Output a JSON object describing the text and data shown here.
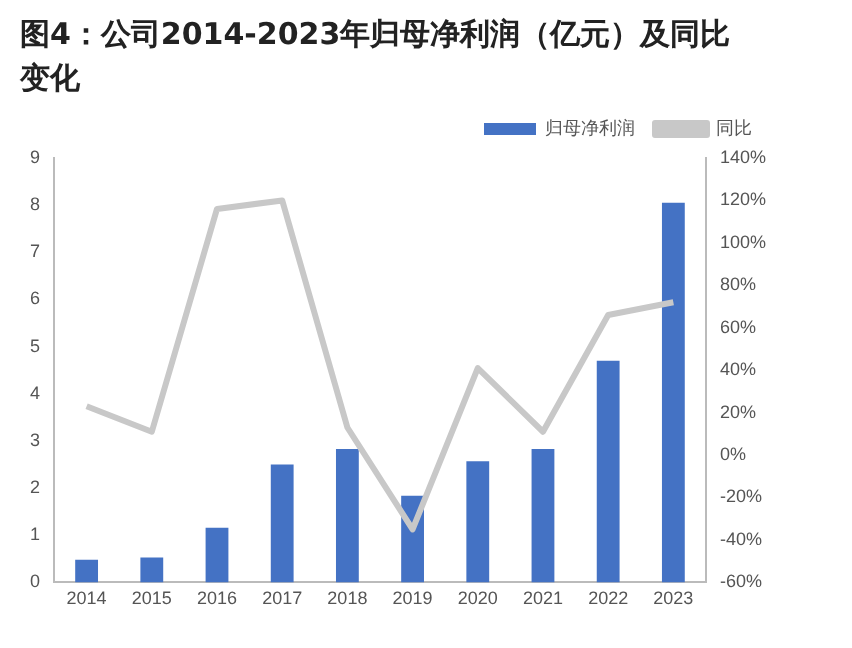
{
  "chart_data": {
    "type": "bar",
    "title": "图4：公司2014-2023年归母净利润（亿元）及同比变化",
    "categories": [
      "2014",
      "2015",
      "2016",
      "2017",
      "2018",
      "2019",
      "2020",
      "2021",
      "2022",
      "2023"
    ],
    "series": [
      {
        "name": "归母净利润",
        "color": "#4472c4",
        "values": [
          0.48,
          0.53,
          1.16,
          2.5,
          2.83,
          1.84,
          2.57,
          2.83,
          4.7,
          8.05
        ]
      },
      {
        "name": "同比",
        "type": "line",
        "axis": "y2",
        "color": "#c8c8c8",
        "values": [
          23,
          11,
          116,
          120,
          13,
          -35,
          41,
          11,
          66,
          72
        ]
      }
    ],
    "ylim": [
      0,
      9
    ],
    "yticks": [
      0,
      1,
      2,
      3,
      4,
      5,
      6,
      7,
      8,
      9
    ],
    "y2lim": [
      -60,
      140
    ],
    "y2ticks": [
      {
        "value": -60,
        "label": "-60%"
      },
      {
        "value": -40,
        "label": "-40%"
      },
      {
        "value": -20,
        "label": "-20%"
      },
      {
        "value": 0,
        "label": "0%"
      },
      {
        "value": 20,
        "label": "20%"
      },
      {
        "value": 40,
        "label": "40%"
      },
      {
        "value": 60,
        "label": "60%"
      },
      {
        "value": 80,
        "label": "80%"
      },
      {
        "value": 100,
        "label": "100%"
      },
      {
        "value": 120,
        "label": "120%"
      },
      {
        "value": 140,
        "label": "140%"
      }
    ],
    "grid": false,
    "legend": "top right",
    "marker": "none",
    "line_style": "solid"
  }
}
